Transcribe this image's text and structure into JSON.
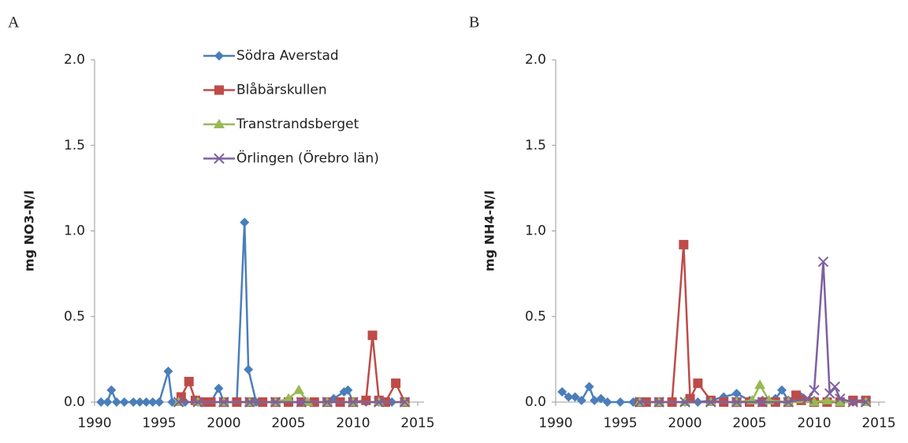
{
  "chart_data": [
    {
      "type": "line",
      "label": "A",
      "ylabel": "mg NO3-N/l",
      "xlim": [
        1990,
        2015
      ],
      "ylim": [
        0,
        2
      ],
      "xticks": [
        1990,
        1995,
        2000,
        2005,
        2010,
        2015
      ],
      "yticks": [
        {
          "value": 0,
          "label": "0.0"
        },
        {
          "value": 0.5,
          "label": "0.5"
        },
        {
          "value": 1,
          "label": "1.0"
        },
        {
          "value": 1.5,
          "label": "1.5"
        },
        {
          "value": 2,
          "label": "2.0"
        }
      ],
      "legend": true,
      "series": [
        {
          "name": "Södra Averstad",
          "color": "#4a7ebb",
          "marker": "diamond",
          "x": [
            1990.5,
            1991,
            1991.3,
            1991.7,
            1992.3,
            1993,
            1993.5,
            1994,
            1994.5,
            1995,
            1995.7,
            1996,
            1997,
            1998,
            1999,
            1999.6,
            2000,
            2001,
            2001.6,
            2001.9,
            2002.5,
            2003,
            2004,
            2005,
            2006,
            2007,
            2008,
            2008.5,
            2009.3,
            2009.6,
            2010,
            2011,
            2012,
            2013
          ],
          "values": [
            0,
            0,
            0.07,
            0,
            0,
            0,
            0,
            0,
            0,
            0,
            0.18,
            0,
            0,
            0,
            0,
            0.08,
            0,
            0,
            1.05,
            0.19,
            0,
            0,
            0,
            0,
            0,
            0,
            0,
            0.02,
            0.06,
            0.07,
            0,
            0,
            0,
            0
          ]
        },
        {
          "name": "Blåbärskullen",
          "color": "#be4b48",
          "marker": "square",
          "x": [
            1996.7,
            1997.3,
            1997.8,
            1998.5,
            1999,
            2000,
            2001,
            2002,
            2003,
            2004,
            2005,
            2006,
            2007,
            2008,
            2009,
            2010,
            2011,
            2011.5,
            2012,
            2012.5,
            2013.3,
            2014
          ],
          "values": [
            0.03,
            0.12,
            0.01,
            0,
            0,
            0,
            0,
            0,
            0,
            0,
            0,
            0,
            0,
            0,
            0,
            0,
            0.01,
            0.39,
            0.01,
            0,
            0.11,
            0
          ]
        },
        {
          "name": "Transtrandsberget",
          "color": "#98b954",
          "marker": "triangle",
          "x": [
            1996.5,
            1998,
            2000,
            2002,
            2004,
            2005,
            2005.8,
            2006.5,
            2008,
            2010,
            2012,
            2014
          ],
          "values": [
            0,
            0,
            0,
            0,
            0,
            0.02,
            0.07,
            0,
            0,
            0,
            0,
            0
          ]
        },
        {
          "name": "Örlingen (Örebro län)",
          "color": "#7d60a0",
          "marker": "x",
          "x": [
            1996.5,
            1998,
            2000,
            2002,
            2004,
            2006,
            2008,
            2010,
            2012,
            2014
          ],
          "values": [
            0,
            0,
            0,
            0,
            0,
            0,
            0,
            0,
            0,
            0
          ]
        }
      ]
    },
    {
      "type": "line",
      "label": "B",
      "ylabel": "mg NH4-N/l",
      "xlim": [
        1990,
        2015
      ],
      "ylim": [
        0,
        2
      ],
      "xticks": [
        1990,
        1995,
        2000,
        2005,
        2010,
        2015
      ],
      "yticks": [
        {
          "value": 0,
          "label": "0.0"
        },
        {
          "value": 0.5,
          "label": "0.5"
        },
        {
          "value": 1,
          "label": "1.0"
        },
        {
          "value": 1.5,
          "label": "1.5"
        },
        {
          "value": 2,
          "label": "2.0"
        }
      ],
      "legend": false,
      "series": [
        {
          "name": "Södra Averstad",
          "color": "#4a7ebb",
          "marker": "diamond",
          "x": [
            1990.5,
            1991,
            1991.5,
            1992,
            1992.6,
            1993,
            1993.5,
            1994,
            1995,
            1996,
            1997,
            1998,
            1999,
            2000,
            2001,
            2002,
            2003,
            2004,
            2005,
            2006,
            2007,
            2007.5,
            2008,
            2009,
            2010,
            2011,
            2012,
            2013
          ],
          "values": [
            0.06,
            0.03,
            0.03,
            0.01,
            0.09,
            0.01,
            0.02,
            0,
            0,
            0,
            0,
            0,
            0,
            0,
            0,
            0.01,
            0.03,
            0.05,
            0.01,
            0.01,
            0.02,
            0.07,
            0.01,
            0.03,
            0.01,
            0,
            0,
            0
          ]
        },
        {
          "name": "Blåbärskullen",
          "color": "#be4b48",
          "marker": "square",
          "x": [
            1996.5,
            1997,
            1998,
            1999,
            1999.9,
            2000.4,
            2001,
            2002,
            2003,
            2004,
            2005,
            2006,
            2007,
            2008,
            2008.6,
            2009,
            2010,
            2011,
            2012,
            2013,
            2014
          ],
          "values": [
            0,
            0,
            0,
            0,
            0.92,
            0.02,
            0.11,
            0.01,
            0,
            0,
            0,
            0,
            0,
            0,
            0.04,
            0.01,
            0,
            0,
            0,
            0.01,
            0.01
          ]
        },
        {
          "name": "Transtrandsberget",
          "color": "#98b954",
          "marker": "triangle",
          "x": [
            1996.5,
            1998,
            2000,
            2002,
            2004,
            2005.2,
            2005.8,
            2006.5,
            2008,
            2010,
            2011,
            2012,
            2014
          ],
          "values": [
            0,
            0,
            0,
            0,
            0,
            0.01,
            0.1,
            0.01,
            0,
            0,
            0.01,
            0,
            0
          ]
        },
        {
          "name": "Örlingen (Örebro län)",
          "color": "#7d60a0",
          "marker": "x",
          "x": [
            1996.5,
            1998,
            2000,
            2002,
            2004,
            2006,
            2008,
            2009.5,
            2010,
            2010.7,
            2011.2,
            2011.6,
            2012,
            2013,
            2014
          ],
          "values": [
            0,
            0,
            0,
            0,
            0,
            0,
            0,
            0.02,
            0.07,
            0.82,
            0.05,
            0.09,
            0.02,
            0,
            0
          ]
        }
      ]
    }
  ]
}
